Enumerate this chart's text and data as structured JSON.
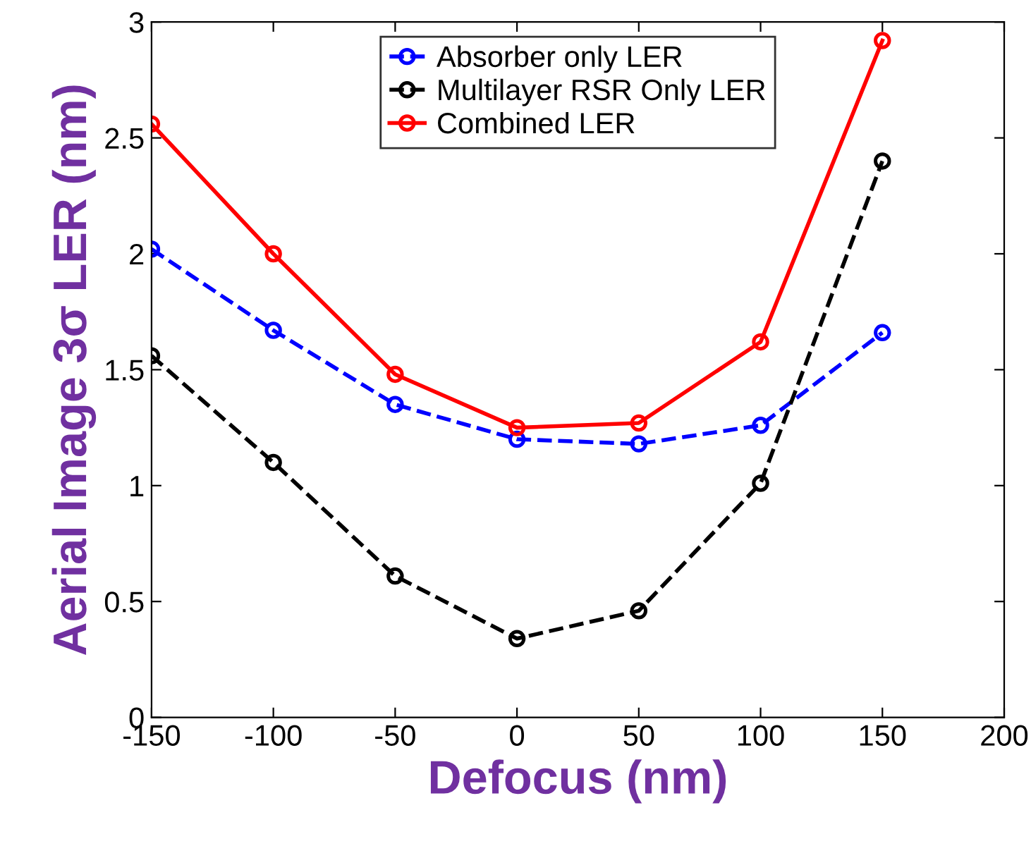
{
  "chart_data": {
    "type": "line",
    "xlabel": "Defocus (nm)",
    "ylabel": "Aerial Image 3σ LER (nm)",
    "x": [
      -150,
      -100,
      -50,
      0,
      50,
      100,
      150
    ],
    "series": [
      {
        "name": "Absorber only LER",
        "color": "#0000ff",
        "line_style": "dashed",
        "values": [
          2.02,
          1.67,
          1.35,
          1.2,
          1.18,
          1.26,
          1.66
        ]
      },
      {
        "name": "Multilayer RSR Only LER",
        "color": "#000000",
        "line_style": "dashed",
        "values": [
          1.56,
          1.1,
          0.61,
          0.34,
          0.46,
          1.01,
          2.4
        ]
      },
      {
        "name": "Combined LER",
        "color": "#ff0000",
        "line_style": "solid",
        "values": [
          2.56,
          2.0,
          1.48,
          1.25,
          1.27,
          1.62,
          2.92
        ]
      }
    ],
    "marker": "circle",
    "xlim": [
      -150,
      200
    ],
    "xticks": [
      -150,
      -100,
      -50,
      0,
      50,
      100,
      150,
      200
    ],
    "ylim": [
      0,
      3
    ],
    "yticks": [
      0,
      0.5,
      1,
      1.5,
      2,
      2.5,
      3
    ],
    "grid": false,
    "legend": "top"
  }
}
